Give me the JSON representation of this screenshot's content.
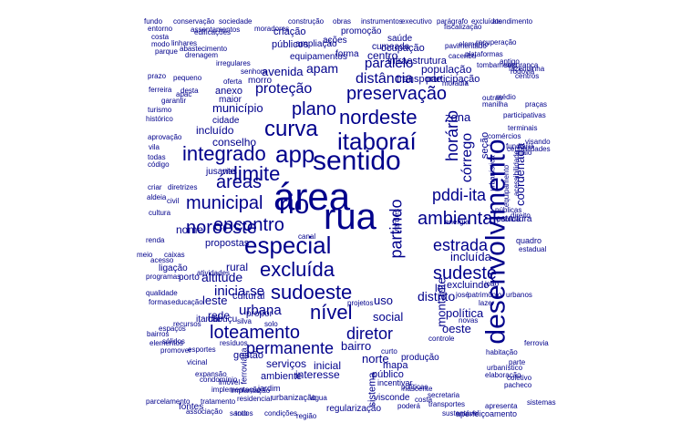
{
  "word_cloud": {
    "color": "#00008b",
    "words": [
      "rua",
      "área",
      "sentido",
      "desenvolvimento",
      "especial",
      "rio",
      "app",
      "excluída",
      "sudoeste",
      "itaboraí",
      "nordeste",
      "curva",
      "plano",
      "preservação",
      "integrado",
      "municipal",
      "limite",
      "noroeste",
      "loteamento",
      "nível",
      "encontro",
      "áreas",
      "ambiental",
      "estrada",
      "sudeste",
      "diretor",
      "permanente",
      "pddi-ita",
      "partindo",
      "horário",
      "córrego",
      "proteção",
      "distância",
      "paralelo",
      "apam",
      "avenida",
      "município",
      "incluído",
      "conselho",
      "altitude",
      "inicia-se",
      "urbana",
      "rural",
      "incluída",
      "distrito",
      "leste",
      "social",
      "norte",
      "bairro",
      "serviços",
      "ambiente",
      "interesse",
      "gestão",
      "inicial",
      "política",
      "oeste",
      "mapa",
      "nome",
      "cultural",
      "centro",
      "transporte",
      "zona",
      "seção",
      "coordenada",
      "lei",
      "montante",
      "verdes",
      "uso",
      "excluindo",
      "quadro",
      "estrutura",
      "sistema",
      "público",
      "porto",
      "rede",
      "infraestrutura",
      "população",
      "participação",
      "ocupação",
      "cumeada",
      "equipamentos",
      "públicos",
      "ampliação",
      "criação",
      "ações",
      "promoção",
      "forma",
      "saúde",
      "morro",
      "anexo",
      "maior",
      "cidade",
      "vias",
      "jusante",
      "propostas",
      "ligação",
      "atendimento",
      "conservação",
      "sociedade",
      "construção",
      "obras",
      "instrumentos",
      "executivo",
      "parágrafo",
      "excluídos",
      "fundo",
      "entorno",
      "costa",
      "modo",
      "moradores",
      "parcelamento",
      "tratamento",
      "residencial",
      "implementação",
      "condomínio",
      "expansão",
      "esportes",
      "imóvel",
      "implantação",
      "jardim",
      "urbanização",
      "água",
      "regularização",
      "incentivar",
      "visconde",
      "produção",
      "nascente",
      "políticas",
      "secretaria",
      "transportes",
      "fontes",
      "associação",
      "santo",
      "todos",
      "condições",
      "região",
      "sustentável",
      "aperfeiçoamento",
      "ferroviária",
      "cabuçu",
      "itambi",
      "silva",
      "solo",
      "propor",
      "educação",
      "espaços",
      "recursos",
      "bairros",
      "caixas",
      "meio",
      "atividades",
      "resíduos",
      "sólidos",
      "promover",
      "elementos",
      "criar",
      "diretrizes",
      "aldeia",
      "cultura",
      "renda",
      "qualidade",
      "programas",
      "acesso",
      "formas",
      "vicinal",
      "estadual",
      "direito",
      "energia",
      "equipamento",
      "acessibilidade",
      "pública",
      "públicas",
      "patrimônio",
      "lazer",
      "urbanos",
      "josé",
      "joão",
      "novas",
      "controle",
      "parte",
      "ferrovia",
      "coletivo",
      "elaboração",
      "urbanístico",
      "habitação",
      "pacheco",
      "prazo",
      "garantir",
      "turismo",
      "histórico",
      "drenagem",
      "abastecimento",
      "irregulares",
      "pavimentado",
      "plataformas",
      "recuperação",
      "elemento",
      "médio",
      "participativas",
      "terminais",
      "comércios",
      "fundiária",
      "centralidades",
      "rodovia",
      "outras",
      "centros",
      "moradia",
      "tombamento",
      "antigo",
      "segurança",
      "fazendinha",
      "senhora",
      "oferta",
      "pequeno",
      "desta",
      "apac",
      "ferreira",
      "parque",
      "linhares",
      "edificações",
      "assentamentos",
      "fiscalização",
      "canal",
      "praças",
      "visando",
      "apresenta",
      "poderá",
      "sistemas",
      "urbanística",
      "vila",
      "todas",
      "aprovação",
      "código",
      "projetos",
      "curto",
      "costa",
      "caceribu",
      "manilha",
      "maio",
      "civil"
    ]
  }
}
